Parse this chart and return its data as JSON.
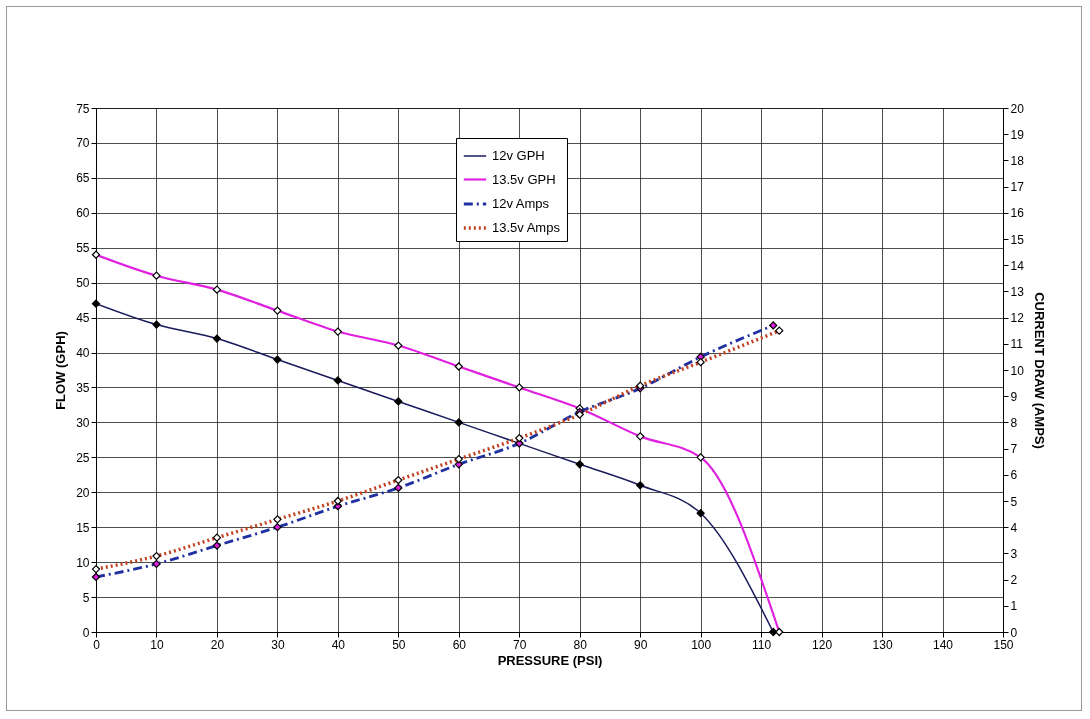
{
  "chart_data": {
    "type": "line",
    "xlabel": "PRESSURE (PSI)",
    "ylabel": "FLOW (GPH)",
    "y2label": "CURRENT DRAW (AMPS)",
    "xlim": [
      0,
      150
    ],
    "xticks": [
      0,
      10,
      20,
      30,
      40,
      50,
      60,
      70,
      80,
      90,
      100,
      110,
      120,
      130,
      140,
      150
    ],
    "ylim": [
      0,
      75
    ],
    "yticks": [
      0,
      5,
      10,
      15,
      20,
      25,
      30,
      35,
      40,
      45,
      50,
      55,
      60,
      65,
      70,
      75
    ],
    "y2lim": [
      0,
      20
    ],
    "y2ticks": [
      0,
      1,
      2,
      3,
      4,
      5,
      6,
      7,
      8,
      9,
      10,
      11,
      12,
      13,
      14,
      15,
      16,
      17,
      18,
      19,
      20
    ],
    "grid": true,
    "legend": "top",
    "marker": "diamond",
    "series": [
      {
        "name": "12v GPH",
        "color": "#1a1a5c",
        "line_style": "solid",
        "x": [
          0,
          10,
          20,
          30,
          40,
          50,
          60,
          70,
          80,
          90,
          100,
          112
        ],
        "values": [
          47,
          44,
          42,
          39,
          36,
          33,
          30,
          27,
          24,
          21,
          17,
          0
        ]
      },
      {
        "name": "13.5v GPH",
        "color": "#e020e0",
        "line_style": "solid",
        "x": [
          0,
          10,
          20,
          30,
          40,
          50,
          60,
          70,
          80,
          90,
          100,
          113
        ],
        "values": [
          54,
          51,
          49,
          46,
          43,
          41,
          38,
          35,
          32,
          28,
          25,
          0
        ]
      },
      {
        "name": "12v Amps",
        "color": "#2030a0",
        "line_style": "dashed",
        "axis": "y2",
        "x": [
          0,
          10,
          20,
          30,
          40,
          50,
          60,
          70,
          80,
          90,
          100,
          112
        ],
        "values": [
          2.1,
          2.6,
          3.3,
          4.0,
          4.8,
          5.5,
          6.4,
          7.2,
          8.4,
          9.3,
          10.5,
          11.7
        ]
      },
      {
        "name": "13.5v Amps",
        "color": "#c04020",
        "line_style": "dotted",
        "axis": "y2",
        "x": [
          0,
          10,
          20,
          30,
          40,
          50,
          60,
          70,
          80,
          90,
          100,
          113
        ],
        "values": [
          2.4,
          2.9,
          3.6,
          4.3,
          5.0,
          5.8,
          6.6,
          7.4,
          8.3,
          9.4,
          10.3,
          11.5
        ]
      }
    ]
  }
}
